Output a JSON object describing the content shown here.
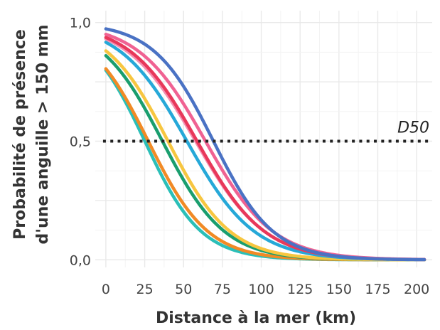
{
  "chart_data": {
    "type": "line",
    "xlabel": "Distance à la mer (km)",
    "ylabel_line1": "Probabilité de présence",
    "ylabel_line2": "d'une anguille > 150 mm",
    "xlim": [
      -5,
      210
    ],
    "ylim": [
      -0.02,
      1.05
    ],
    "x_ticks": [
      0,
      25,
      50,
      75,
      100,
      125,
      150,
      175,
      200
    ],
    "x_tick_labels": [
      "0",
      "25",
      "50",
      "75",
      "100",
      "125",
      "150",
      "175",
      "200"
    ],
    "y_ticks": [
      0,
      0.5,
      1
    ],
    "y_tick_labels": [
      "0,0",
      "0,5",
      "1,0"
    ],
    "grid": true,
    "x_range": [
      0,
      205
    ],
    "reference_line": {
      "y": 0.5,
      "label": "D50",
      "style": "dotted",
      "color": "#222222"
    },
    "series": [
      {
        "color": "#2bbfb8",
        "intercept": 1.38,
        "slope": 0.055
      },
      {
        "color": "#f18a25",
        "intercept": 1.42,
        "slope": 0.052
      },
      {
        "color": "#1a9e6e",
        "intercept": 1.82,
        "slope": 0.05
      },
      {
        "color": "#f7c640",
        "intercept": 2.0,
        "slope": 0.05
      },
      {
        "color": "#26a8d8",
        "intercept": 2.4,
        "slope": 0.046
      },
      {
        "color": "#f48fb1",
        "intercept": 2.6,
        "slope": 0.045
      },
      {
        "color": "#e8385a",
        "intercept": 2.7,
        "slope": 0.046
      },
      {
        "color": "#f06292",
        "intercept": 2.95,
        "slope": 0.046
      },
      {
        "color": "#4a72c4",
        "intercept": 3.6,
        "slope": 0.052
      }
    ]
  }
}
